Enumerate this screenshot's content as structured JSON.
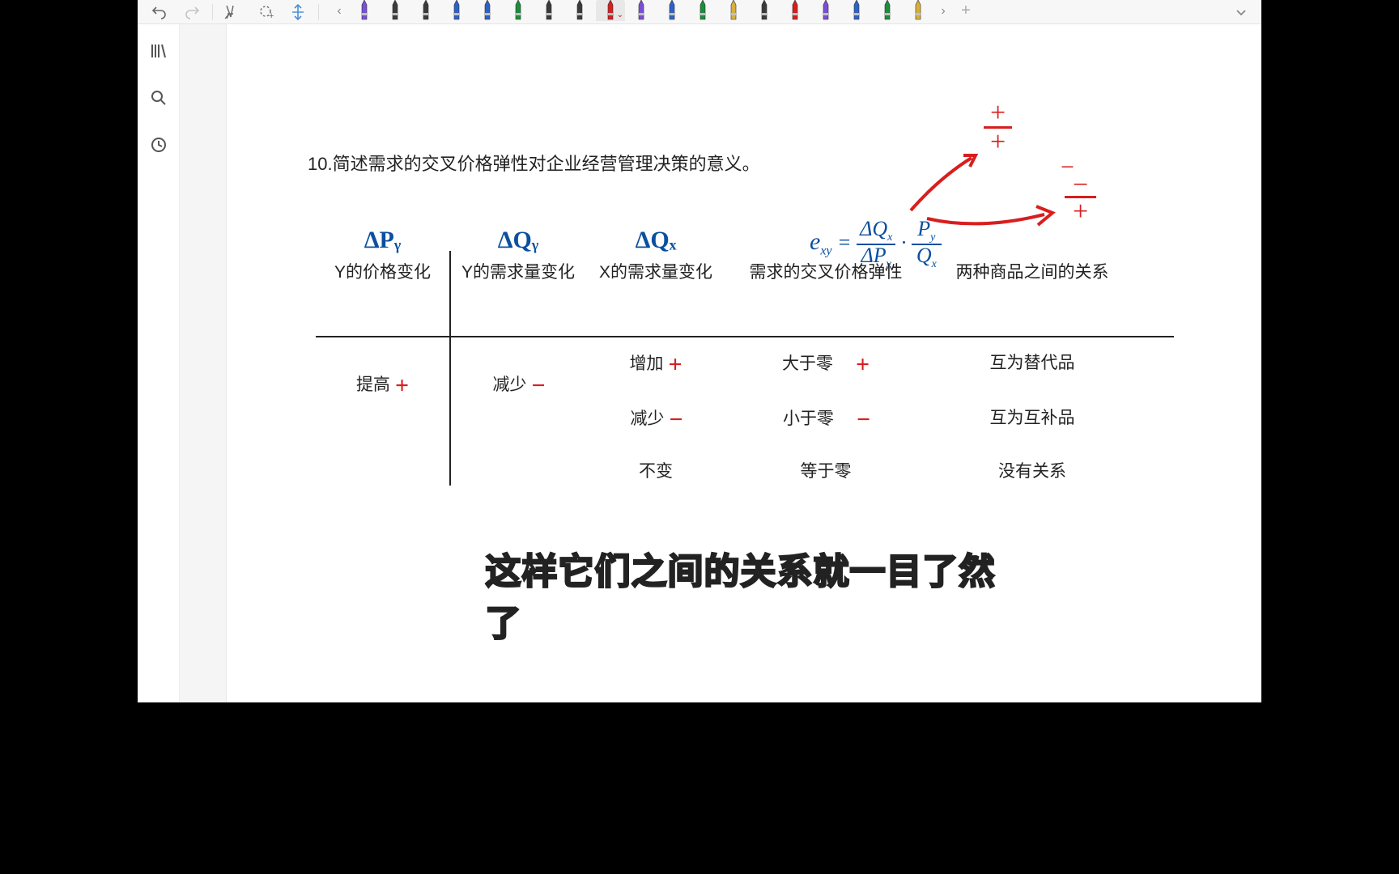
{
  "toolbar": {
    "pen_colors": [
      "#7b4fd8",
      "#3b3b3b",
      "#3b3b3b",
      "#2e62c9",
      "#2e62c9",
      "#1a8f3a",
      "#3b3b3b",
      "#3b3b3b",
      "#d81e1e",
      "#7b4fd8",
      "#2e62c9",
      "#1a8f3a",
      "#d9b13a",
      "#3b3b3b",
      "#d81e1e",
      "#7b4fd8",
      "#2e62c9",
      "#1a8f3a",
      "#d9b13a"
    ],
    "selected_pen_index": 8
  },
  "content": {
    "question": "10.简述需求的交叉价格弹性对企业经营管理决策的意义。",
    "headers": {
      "c1_formula": "ΔPᵧ",
      "c1_cn": "Y的价格变化",
      "c2_formula": "ΔQᵧ",
      "c2_cn": "Y的需求量变化",
      "c3_formula": "ΔQₓ",
      "c3_cn": "X的需求量变化",
      "c4_cn": "需求的交叉价格弹性",
      "c5_cn": "两种商品之间的关系"
    },
    "formula_exy": "eₓᵧ = ΔQₓ/ΔPᵧ · Pᵧ/Qₓ",
    "body": {
      "r1": {
        "c1": "提高",
        "c1_mark": "+",
        "c2": "减少",
        "c2_mark": "−"
      },
      "rows": [
        {
          "c3": "增加",
          "c3_mark": "+",
          "c4": "大于零",
          "c4_mark": "+",
          "c5": "互为替代品"
        },
        {
          "c3": "减少",
          "c3_mark": "−",
          "c4": "小于零",
          "c4_mark": "−",
          "c5": "互为互补品"
        },
        {
          "c3": "不变",
          "c3_mark": "",
          "c4": "等于零",
          "c4_mark": "",
          "c5": "没有关系"
        }
      ]
    },
    "annotations": {
      "top_plus1": "+",
      "top_plus2": "+",
      "top_minus1": "−",
      "top_minus2": "−",
      "top_plus3": "+"
    },
    "caption": "这样它们之间的关系就一目了然了"
  },
  "colors": {
    "blue": "#0b4fa0",
    "red": "#d81e1e"
  }
}
